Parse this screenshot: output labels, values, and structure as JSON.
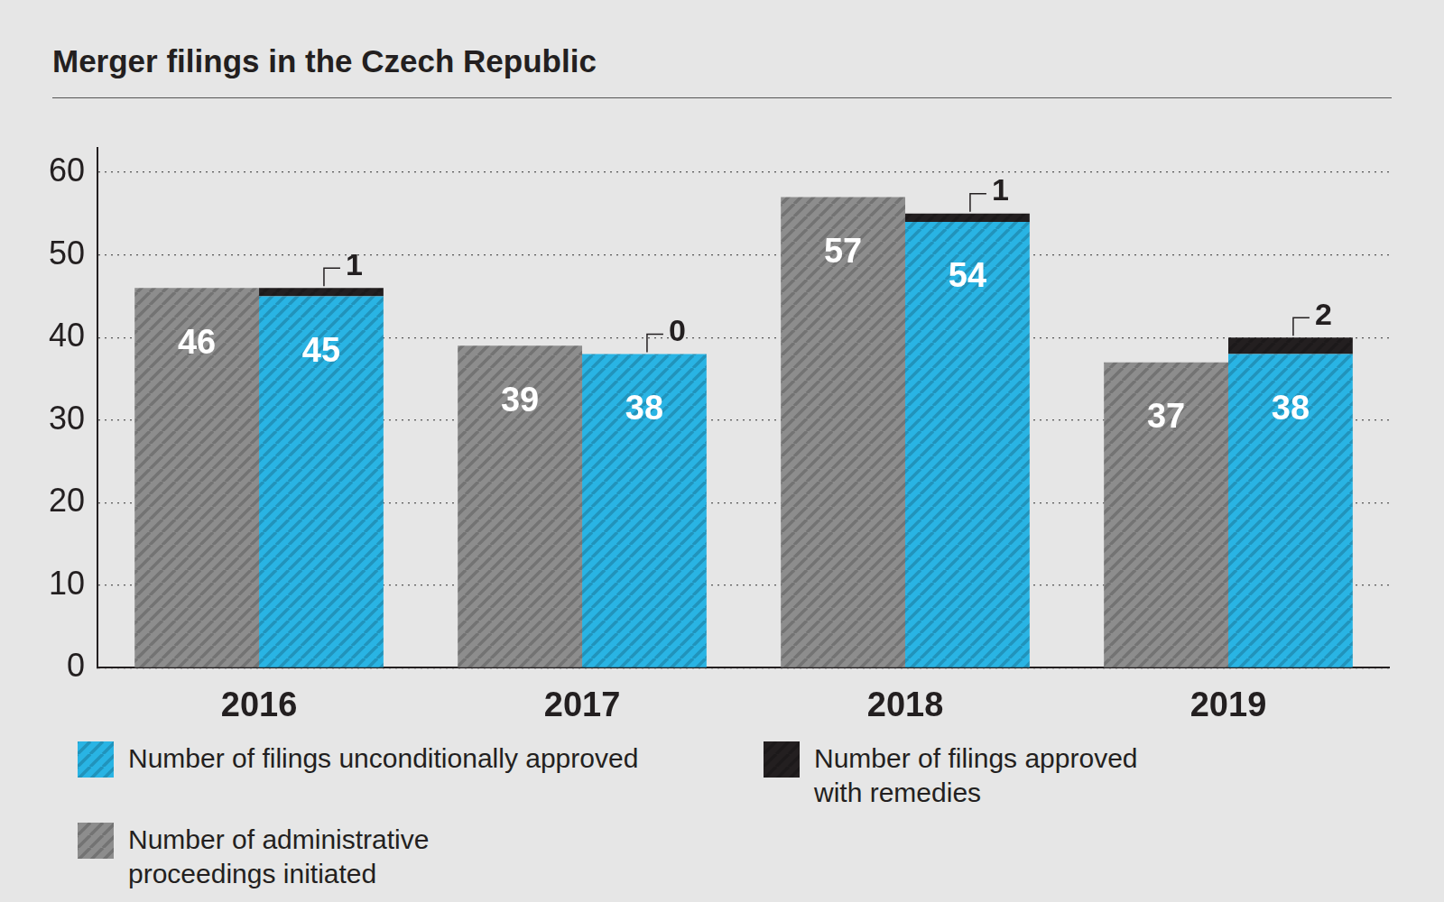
{
  "chart_data": {
    "type": "bar",
    "title": "Merger filings in the Czech Republic",
    "categories": [
      "2016",
      "2017",
      "2018",
      "2019"
    ],
    "series": [
      {
        "name": "Number of administrative proceedings initiated",
        "color": "#8d8d8d",
        "values": [
          46,
          39,
          57,
          37
        ]
      },
      {
        "name": "Number of filings unconditionally approved",
        "color": "#29b4e4",
        "values": [
          45,
          38,
          54,
          38
        ],
        "stacked": true
      },
      {
        "name": "Number of filings approved with remedies",
        "color": "#231f20",
        "values": [
          1,
          0,
          1,
          2
        ],
        "stacked": true
      }
    ],
    "ylim": [
      0,
      63
    ],
    "yticks": [
      0,
      10,
      20,
      30,
      40,
      50,
      60
    ],
    "grid": true,
    "data_labels": true,
    "legend": "bottom"
  }
}
